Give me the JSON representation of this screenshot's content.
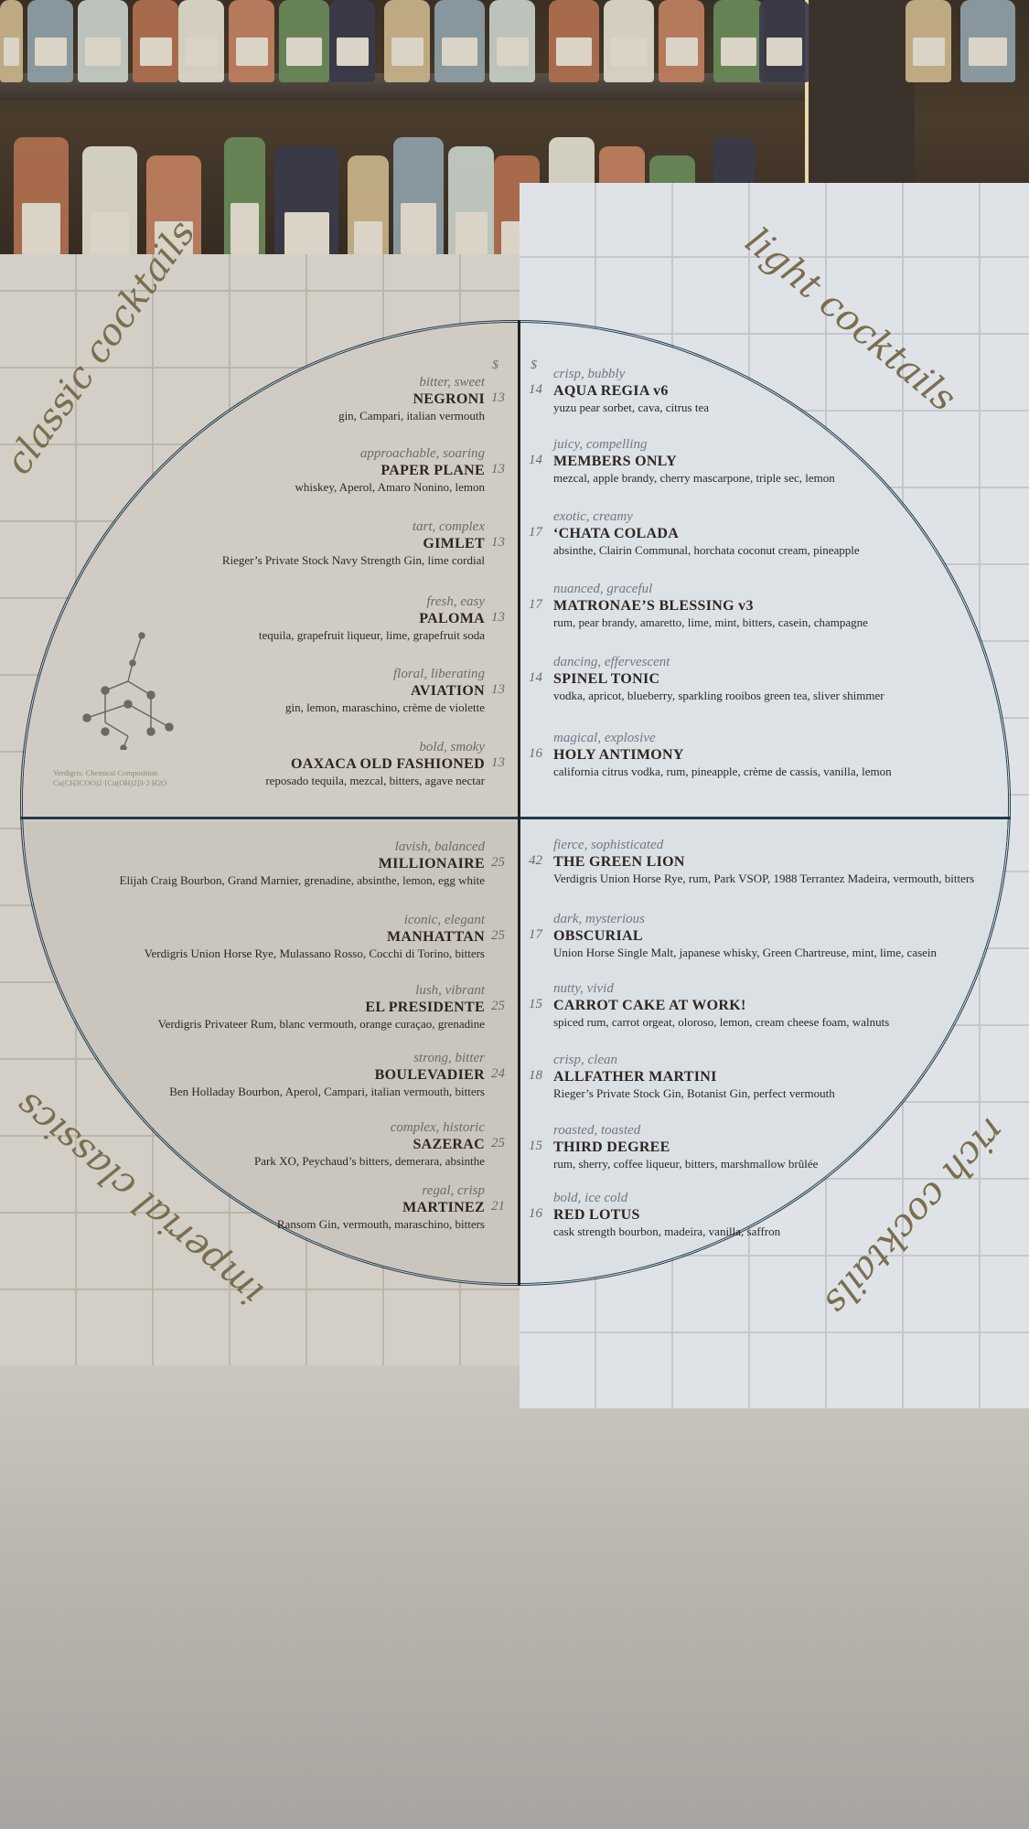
{
  "menu": {
    "currency_symbol": "$",
    "sections": {
      "classic": {
        "title": "classic cocktails",
        "items": [
          {
            "tag": "bitter, sweet",
            "name": "NEGRONI",
            "price": "13",
            "ingredients": "gin, Campari, italian vermouth"
          },
          {
            "tag": "approachable, soaring",
            "name": "PAPER PLANE",
            "price": "13",
            "ingredients": "whiskey, Aperol, Amaro Nonino, lemon"
          },
          {
            "tag": "tart, complex",
            "name": "GIMLET",
            "price": "13",
            "ingredients": "Rieger’s Private Stock Navy Strength Gin, lime cordial"
          },
          {
            "tag": "fresh, easy",
            "name": "PALOMA",
            "price": "13",
            "ingredients": "tequila, grapefruit liqueur, lime, grapefruit soda"
          },
          {
            "tag": "floral, liberating",
            "name": "AVIATION",
            "price": "13",
            "ingredients": "gin, lemon, maraschino, crème de violette"
          },
          {
            "tag": "bold, smoky",
            "name": "OAXACA OLD FASHIONED",
            "price": "13",
            "ingredients": "reposado tequila, mezcal, bitters, agave nectar"
          }
        ]
      },
      "light": {
        "title": "light cocktails",
        "items": [
          {
            "tag": "crisp, bubbly",
            "name": "AQUA REGIA v6",
            "price": "14",
            "ingredients": "yuzu pear sorbet, cava, citrus tea"
          },
          {
            "tag": "juicy, compelling",
            "name": "MEMBERS ONLY",
            "price": "14",
            "ingredients": "mezcal, apple brandy, cherry mascarpone, triple sec, lemon"
          },
          {
            "tag": "exotic, creamy",
            "name": "‘CHATA COLADA",
            "price": "17",
            "ingredients": "absinthe, Clairin Communal, horchata coconut cream, pineapple"
          },
          {
            "tag": "nuanced, graceful",
            "name": "MATRONAE’S BLESSING v3",
            "price": "17",
            "ingredients": "rum, pear brandy, amaretto, lime, mint, bitters, casein, champagne"
          },
          {
            "tag": "dancing, effervescent",
            "name": "SPINEL TONIC",
            "price": "14",
            "ingredients": "vodka, apricot, blueberry, sparkling rooibos green tea, sliver shimmer"
          },
          {
            "tag": "magical, explosive",
            "name": "HOLY ANTIMONY",
            "price": "16",
            "ingredients": "california citrus vodka, rum, pineapple, crème de cassis, vanilla, lemon"
          }
        ]
      },
      "imperial": {
        "title": "imperial classics",
        "items": [
          {
            "tag": "lavish, balanced",
            "name": "MILLIONAIRE",
            "price": "25",
            "ingredients": "Elijah Craig Bourbon, Grand Marnier, grenadine, absinthe, lemon, egg white"
          },
          {
            "tag": "iconic, elegant",
            "name": "MANHATTAN",
            "price": "25",
            "ingredients": "Verdigris Union Horse Rye, Mulassano Rosso, Cocchi di Torino, bitters"
          },
          {
            "tag": "lush, vibrant",
            "name": "EL PRESIDENTE",
            "price": "25",
            "ingredients": "Verdigris Privateer Rum, blanc vermouth, orange curaçao, grenadine"
          },
          {
            "tag": "strong, bitter",
            "name": "BOULEVADIER",
            "price": "24",
            "ingredients": "Ben Holladay Bourbon, Aperol, Campari, italian vermouth, bitters"
          },
          {
            "tag": "complex, historic",
            "name": "SAZERAC",
            "price": "25",
            "ingredients": "Park XO, Peychaud’s bitters, demerara, absinthe"
          },
          {
            "tag": "regal, crisp",
            "name": "MARTINEZ",
            "price": "21",
            "ingredients": "Ransom Gin, vermouth, maraschino, bitters"
          }
        ]
      },
      "rich": {
        "title": "rich cocktails",
        "items": [
          {
            "tag": "fierce, sophisticated",
            "name": "THE GREEN LION",
            "price": "42",
            "ingredients": "Verdigris Union Horse Rye, rum, Park VSOP, 1988 Terrantez Madeira, vermouth, bitters"
          },
          {
            "tag": "dark, mysterious",
            "name": "OBSCURIAL",
            "price": "17",
            "ingredients": "Union Horse Single Malt, japanese whisky, Green Chartreuse, mint, lime, casein"
          },
          {
            "tag": "nutty, vivid",
            "name": "CARROT CAKE AT WORK!",
            "price": "15",
            "ingredients": "spiced rum, carrot orgeat, oloroso, lemon, cream cheese foam, walnuts"
          },
          {
            "tag": "crisp, clean",
            "name": "ALLFATHER MARTINI",
            "price": "18",
            "ingredients": "Rieger’s Private Stock Gin, Botanist Gin, perfect vermouth"
          },
          {
            "tag": "roasted, toasted",
            "name": "THIRD DEGREE",
            "price": "15",
            "ingredients": "rum, sherry, coffee liqueur, bitters, marshmallow brûlée"
          },
          {
            "tag": "bold, ice cold",
            "name": "RED LOTUS",
            "price": "16",
            "ingredients": "cask strength bourbon, madeira, vanilla, saffron"
          }
        ]
      }
    },
    "molecule_caption": {
      "line1": "Verdigris: Chemical Composition",
      "line2": "Cu(CH3COO)2·[Cu(OH)2]3·2 H2O"
    },
    "colors": {
      "circle_line": "#1f3a4a",
      "section_title": "#7a6e4e",
      "left_page": "#d4cfc6",
      "right_page": "#dfe3e8"
    }
  }
}
